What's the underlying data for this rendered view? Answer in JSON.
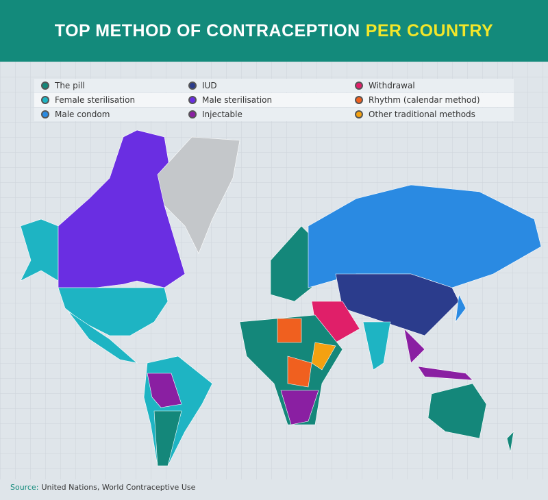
{
  "header": {
    "title": "TOP METHOD OF CONTRACEPTION",
    "title_highlight": "PER COUNTRY"
  },
  "legend": {
    "items": [
      {
        "label": "The pill",
        "color": "#14877a"
      },
      {
        "label": "Female sterilisation",
        "color": "#1eb4c3"
      },
      {
        "label": "Male condom",
        "color": "#2a8ae2"
      },
      {
        "label": "IUD",
        "color": "#2b3c8c"
      },
      {
        "label": "Male sterilisation",
        "color": "#6a2ee2"
      },
      {
        "label": "Injectable",
        "color": "#8a1fa2"
      },
      {
        "label": "Withdrawal",
        "color": "#e01f69"
      },
      {
        "label": "Rhythm (calendar method)",
        "color": "#f0601f"
      },
      {
        "label": "Other traditional methods",
        "color": "#f4a111"
      }
    ]
  },
  "source": {
    "label": "Source:",
    "text": "United Nations, World Contraceptive Use"
  }
}
